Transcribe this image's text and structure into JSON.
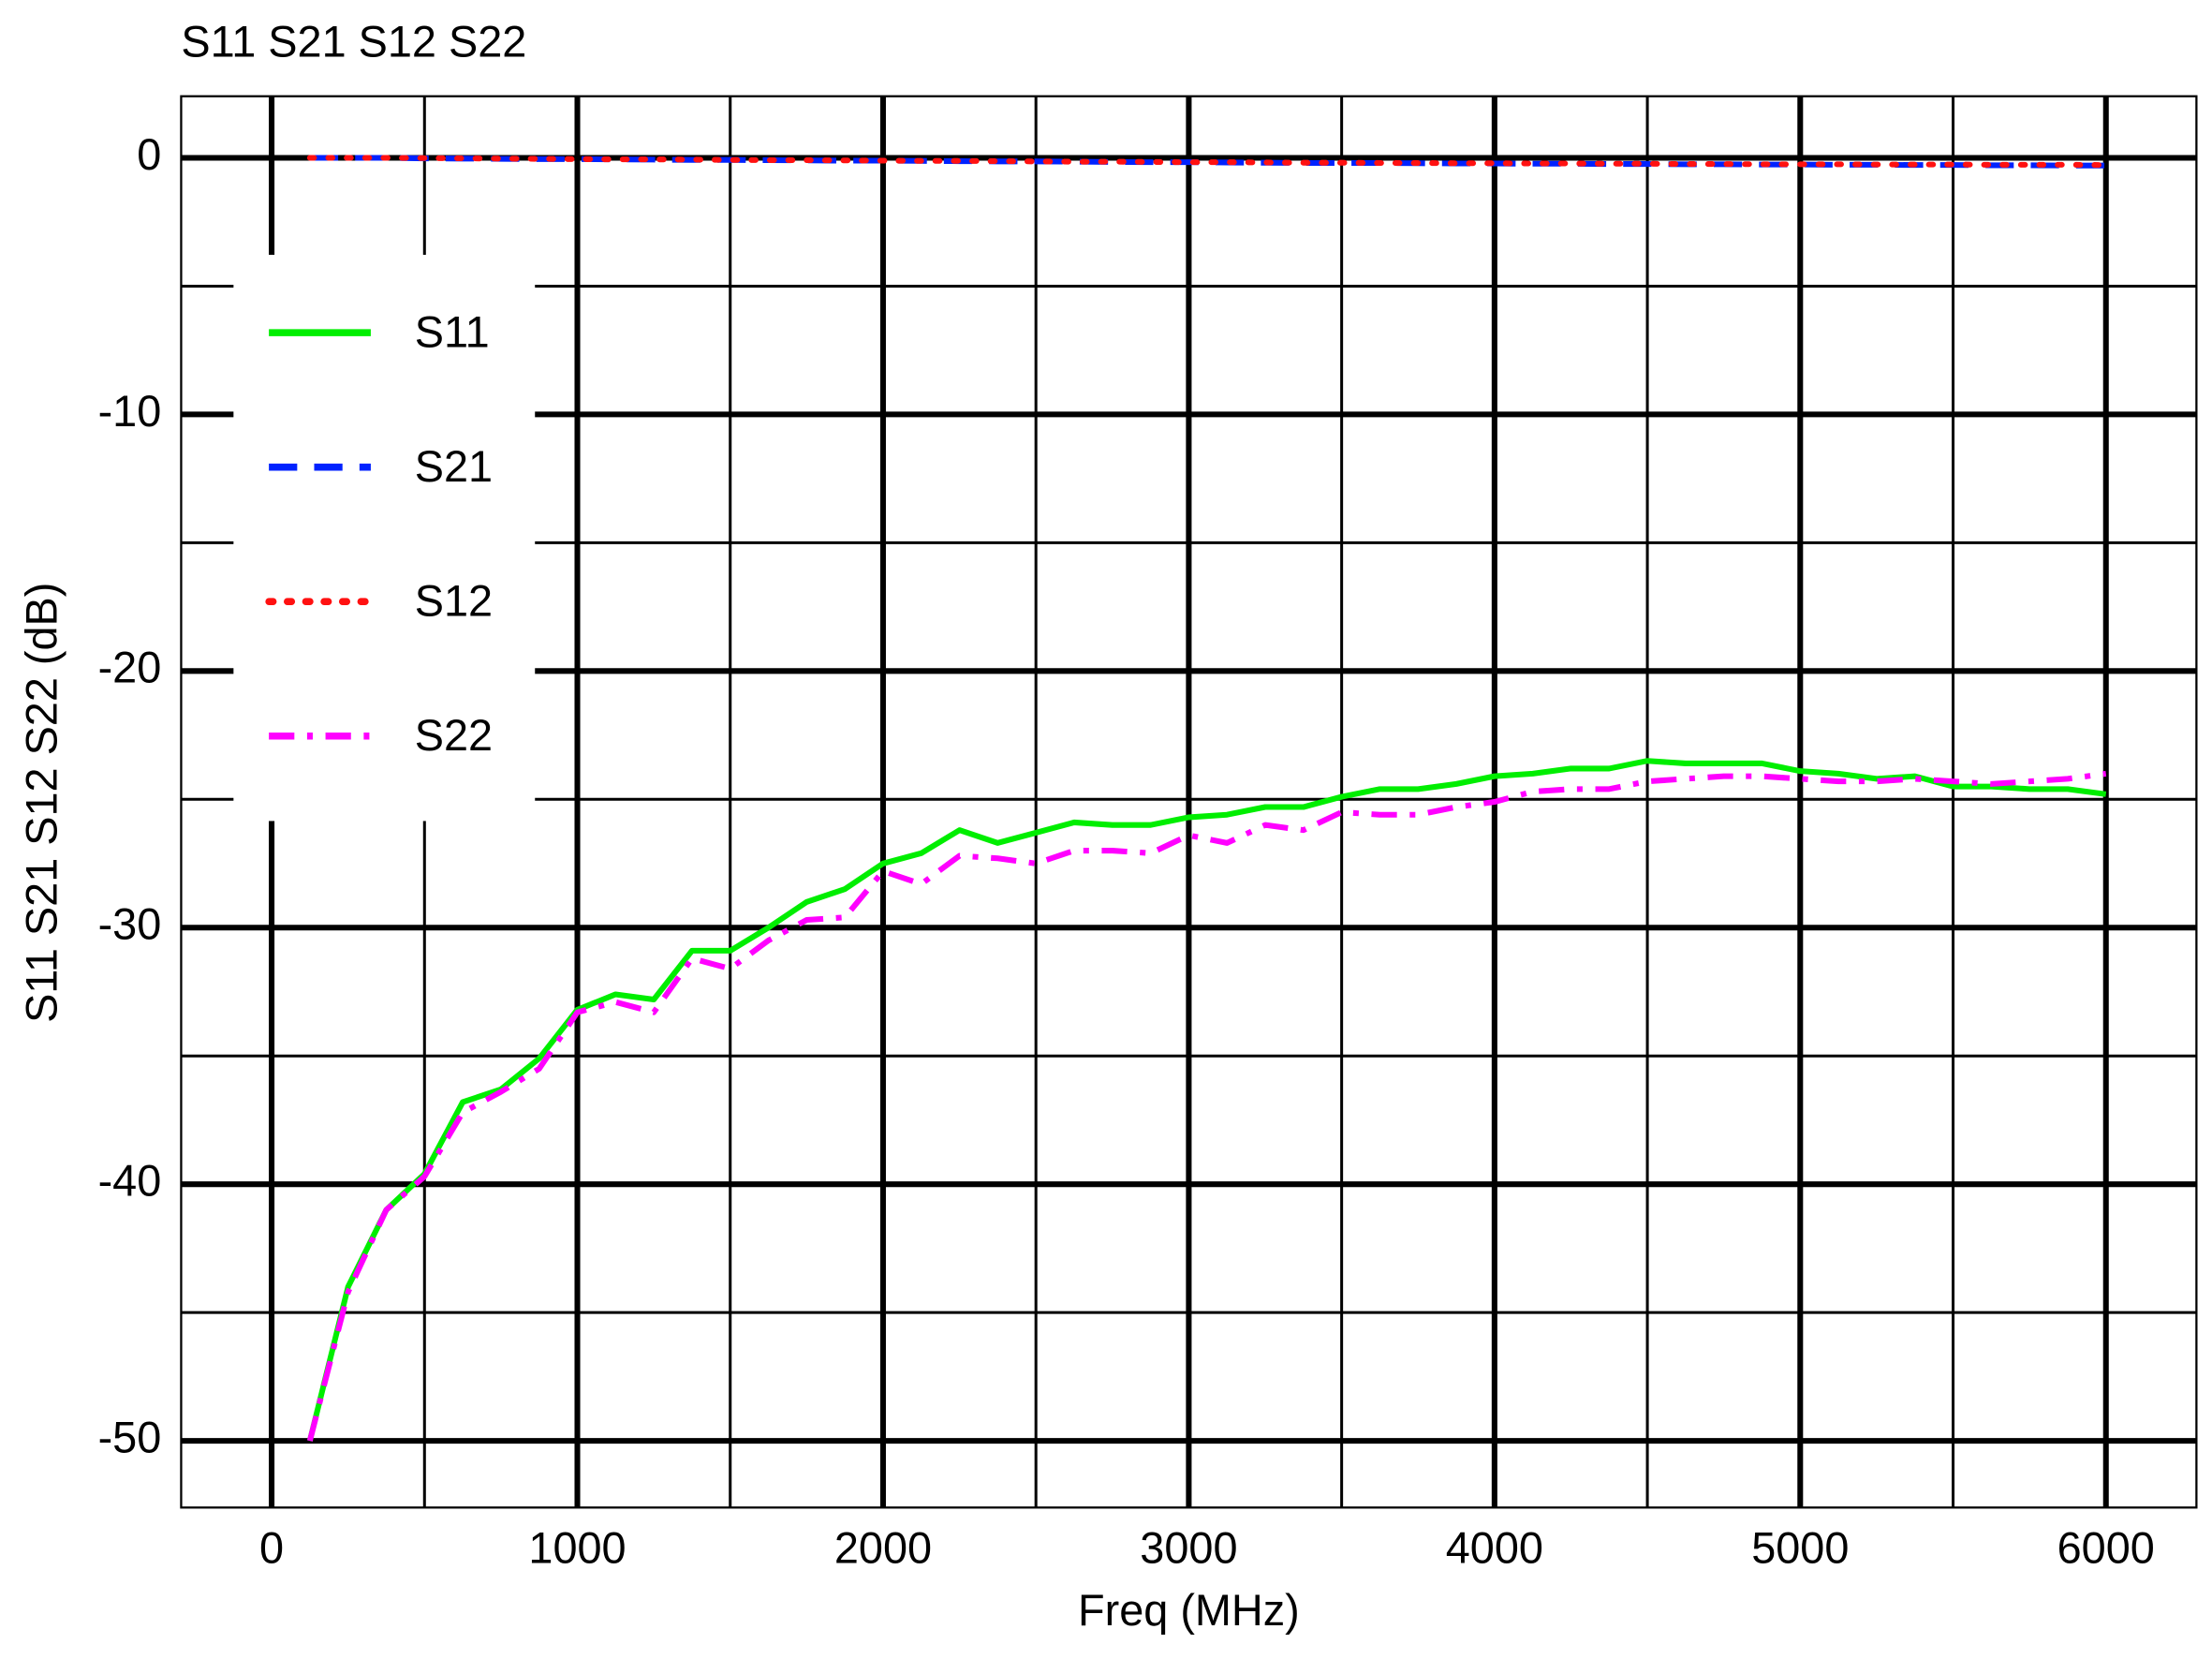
{
  "chart_data": {
    "type": "line",
    "title": "S11 S21 S12 S22",
    "xlabel": "Freq (MHz)",
    "ylabel": "S11 S21 S12 S22  (dB)",
    "x": [
      125,
      250,
      375,
      500,
      625,
      750,
      875,
      1000,
      1125,
      1250,
      1375,
      1500,
      1625,
      1750,
      1875,
      2000,
      2125,
      2250,
      2375,
      2500,
      2625,
      2750,
      2875,
      3000,
      3125,
      3250,
      3375,
      3500,
      3625,
      3750,
      3875,
      4000,
      4125,
      4250,
      4375,
      4500,
      4625,
      4750,
      4875,
      5000,
      5125,
      5250,
      5375,
      5500,
      5625,
      5750,
      5875,
      6000
    ],
    "series": [
      {
        "name": "S11",
        "color": "#00ee00",
        "dash": "solid",
        "values": [
          -50,
          -44,
          -41,
          -39.6,
          -36.8,
          -36.3,
          -35.1,
          -33.2,
          -32.6,
          -32.8,
          -30.9,
          -30.9,
          -30,
          -29,
          -28.5,
          -27.5,
          -27.1,
          -26.2,
          -26.7,
          -26.3,
          -25.9,
          -26,
          -26,
          -25.7,
          -25.6,
          -25.3,
          -25.3,
          -24.9,
          -24.6,
          -24.6,
          -24.4,
          -24.1,
          -24,
          -23.8,
          -23.8,
          -23.5,
          -23.6,
          -23.6,
          -23.6,
          -23.9,
          -24,
          -24.2,
          -24.1,
          -24.5,
          -24.5,
          -24.6,
          -24.6,
          -24.8
        ]
      },
      {
        "name": "S21",
        "color": "#0022ff",
        "dash": "dashed",
        "values": [
          0,
          0,
          0,
          -0.02,
          -0.03,
          -0.04,
          -0.05,
          -0.05,
          -0.06,
          -0.07,
          -0.08,
          -0.08,
          -0.09,
          -0.1,
          -0.11,
          -0.11,
          -0.12,
          -0.13,
          -0.14,
          -0.14,
          -0.15,
          -0.16,
          -0.17,
          -0.17,
          -0.18,
          -0.19,
          -0.2,
          -0.2,
          -0.2,
          -0.21,
          -0.22,
          -0.22,
          -0.23,
          -0.23,
          -0.24,
          -0.24,
          -0.25,
          -0.25,
          -0.26,
          -0.26,
          -0.27,
          -0.27,
          -0.28,
          -0.28,
          -0.29,
          -0.29,
          -0.3,
          -0.3
        ]
      },
      {
        "name": "S12",
        "color": "#ff1111",
        "dash": "dotted",
        "values": [
          0,
          0,
          0,
          -0.01,
          -0.02,
          -0.03,
          -0.04,
          -0.05,
          -0.06,
          -0.06,
          -0.07,
          -0.08,
          -0.09,
          -0.09,
          -0.1,
          -0.11,
          -0.12,
          -0.12,
          -0.13,
          -0.14,
          -0.15,
          -0.15,
          -0.16,
          -0.17,
          -0.17,
          -0.18,
          -0.19,
          -0.19,
          -0.2,
          -0.2,
          -0.21,
          -0.21,
          -0.22,
          -0.22,
          -0.23,
          -0.23,
          -0.24,
          -0.24,
          -0.25,
          -0.25,
          -0.25,
          -0.26,
          -0.26,
          -0.26,
          -0.27,
          -0.27,
          -0.27,
          -0.28
        ]
      },
      {
        "name": "S22",
        "color": "#ff00ff",
        "dash": "dashdot",
        "values": [
          -50,
          -44.2,
          -41,
          -39.7,
          -37.2,
          -36.4,
          -35.5,
          -33.3,
          -32.9,
          -33.3,
          -31.2,
          -31.6,
          -30.5,
          -29.7,
          -29.6,
          -27.8,
          -28.3,
          -27.2,
          -27.3,
          -27.5,
          -27,
          -27,
          -27.1,
          -26.4,
          -26.7,
          -26,
          -26.2,
          -25.5,
          -25.6,
          -25.6,
          -25.3,
          -25.1,
          -24.7,
          -24.6,
          -24.6,
          -24.3,
          -24.2,
          -24.1,
          -24.1,
          -24.2,
          -24.3,
          -24.3,
          -24.2,
          -24.3,
          -24.4,
          -24.3,
          -24.2,
          -24
        ]
      }
    ],
    "xlim": [
      -296,
      6296
    ],
    "ylim": [
      -52.6,
      2.4
    ],
    "xticks": [
      0,
      1000,
      2000,
      3000,
      4000,
      5000,
      6000
    ],
    "yticks": [
      0,
      -10,
      -20,
      -30,
      -40,
      -50
    ],
    "x_minor_ticks": [
      500,
      1500,
      2500,
      3500,
      4500,
      5500
    ],
    "y_minor_ticks": [
      -5,
      -15,
      -25,
      -35,
      -45
    ],
    "grid": true,
    "legend": "upper left"
  }
}
